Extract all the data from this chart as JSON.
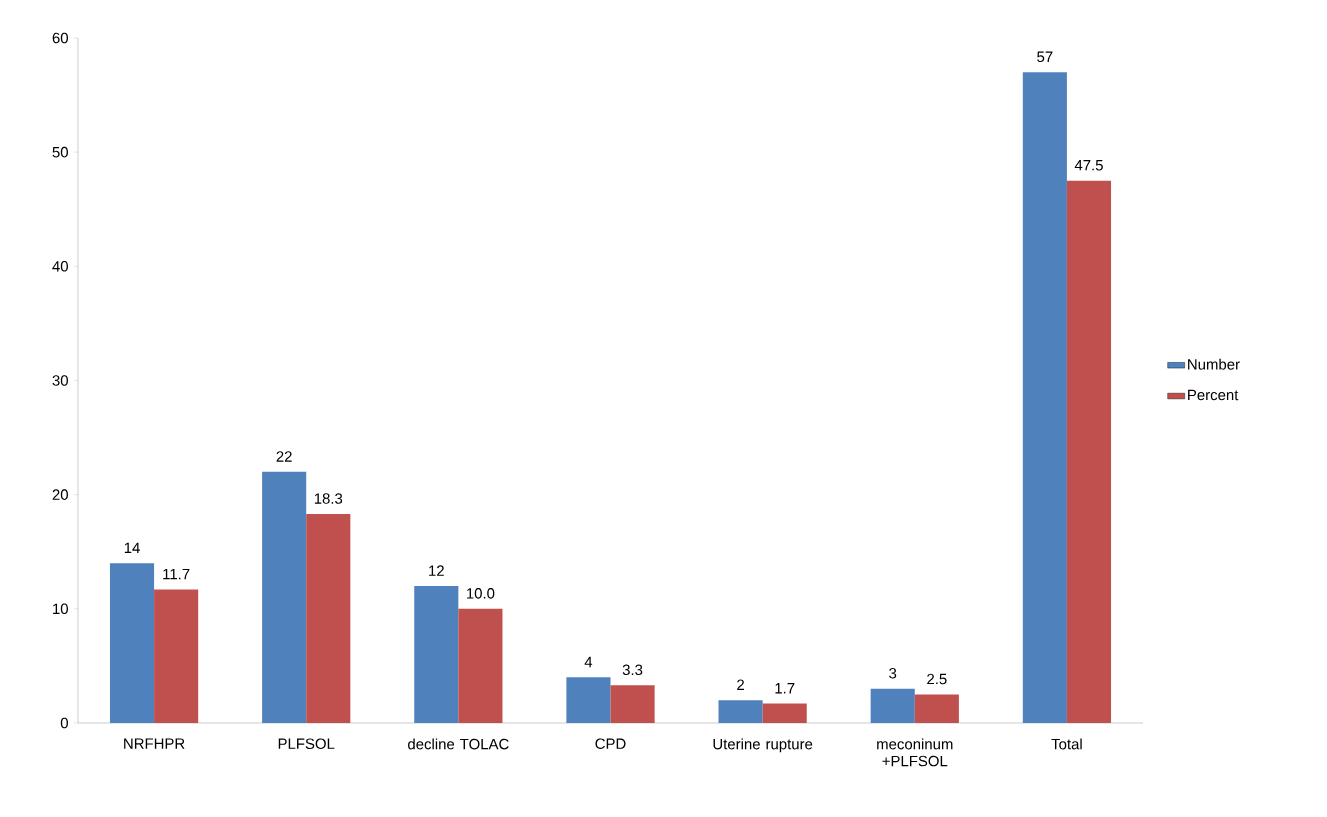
{
  "chart_data": {
    "type": "bar",
    "categories": [
      "NRFHPR",
      "PLFSOL",
      "decline TOLAC",
      "CPD",
      "Uterine rupture",
      "meconinum +PLFSOL",
      "Total"
    ],
    "series": [
      {
        "name": "Number",
        "color": "#4f81bd",
        "values": [
          14,
          22,
          12,
          4,
          2,
          3,
          57
        ],
        "value_labels": [
          "14",
          "22",
          "12",
          "4",
          "2",
          "3",
          "57"
        ]
      },
      {
        "name": "Percent",
        "color": "#c0504d",
        "values": [
          11.7,
          18.3,
          10.0,
          3.3,
          1.7,
          2.5,
          47.5
        ],
        "value_labels": [
          "11.7",
          "18.3",
          "10.0",
          "3.3",
          "1.7",
          "2.5",
          "47.5"
        ]
      }
    ],
    "ylim": [
      0,
      60
    ],
    "yticks": [
      0,
      10,
      20,
      30,
      40,
      50,
      60
    ],
    "grid": false,
    "legend": "right"
  }
}
